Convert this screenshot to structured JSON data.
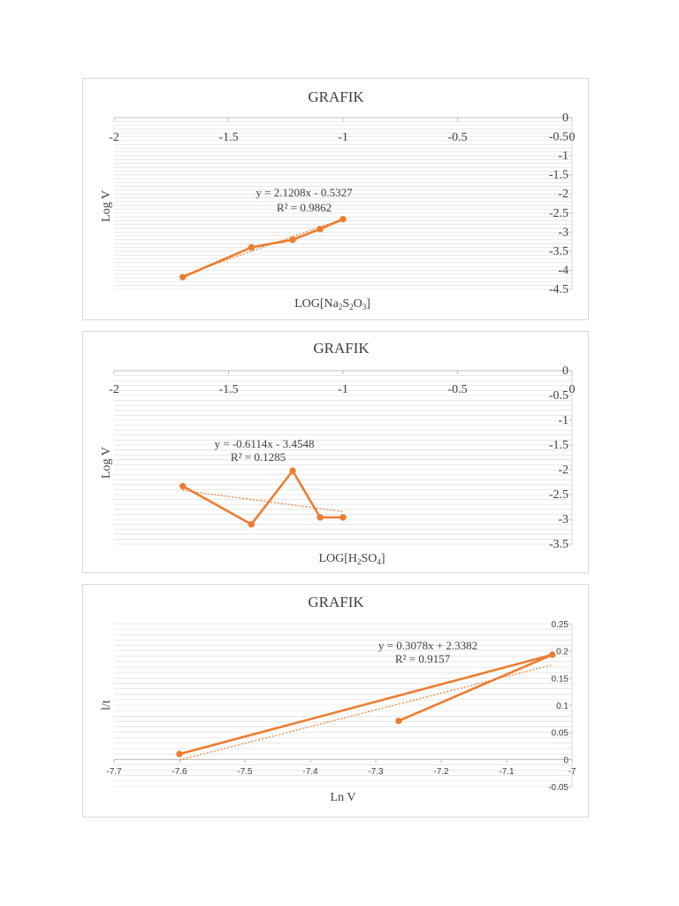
{
  "chart_data": [
    {
      "type": "line",
      "title": "GRAFIK",
      "xlabel": "LOG[Na2S2O3]",
      "xlabel_main": "LOG[Na",
      "xlabel_sub1": "2",
      "xlabel_mid1": "S",
      "xlabel_sub2": "2",
      "xlabel_mid2": "O",
      "xlabel_sub3": "3",
      "xlabel_end": "]",
      "ylabel": "Log V",
      "xlim": [
        -2,
        0
      ],
      "ylim": [
        -4.5,
        0
      ],
      "x_ticks": [
        "-2",
        "-1.5",
        "-1",
        "-0.5",
        "0"
      ],
      "y_ticks": [
        "0",
        "-0.5",
        "-1",
        "-1.5",
        "-2",
        "-2.5",
        "-3",
        "-3.5",
        "-4",
        "-4.5"
      ],
      "series": [
        {
          "x": [
            -1.7,
            -1.4,
            -1.22,
            -1.1,
            -1.0
          ],
          "y": [
            -4.18,
            -3.4,
            -3.2,
            -2.92,
            -2.66
          ]
        }
      ],
      "trendline": {
        "slope": 2.1208,
        "intercept": -0.5327
      },
      "equation": "y = 2.1208x - 0.5327",
      "r2": "R² = 0.9862"
    },
    {
      "type": "line",
      "title": "GRAFIK",
      "xlabel": "LOG[H2SO4]",
      "xlabel_main": "LOG[H",
      "xlabel_sub1": "2",
      "xlabel_mid1": "SO",
      "xlabel_sub2": "4",
      "xlabel_end": "]",
      "ylabel": "Log V",
      "xlim": [
        -2,
        0
      ],
      "ylim": [
        -3.5,
        0
      ],
      "x_ticks": [
        "-2",
        "-1.5",
        "-1",
        "-0.5",
        "0"
      ],
      "y_ticks": [
        "0",
        "-0.5",
        "-1",
        "-1.5",
        "-2",
        "-2.5",
        "-3",
        "-3.5"
      ],
      "series": [
        {
          "x": [
            -1.7,
            -1.4,
            -1.22,
            -1.1,
            -1.0
          ],
          "y": [
            -2.33,
            -3.1,
            -2.02,
            -2.96,
            -2.96
          ]
        }
      ],
      "trendline": {
        "slope": -0.6114,
        "intercept": -3.4548
      },
      "equation": "y = -0.6114x - 3.4548",
      "r2": "R² = 0.1285"
    },
    {
      "type": "line",
      "title": "GRAFIK",
      "xlabel": "Ln V",
      "ylabel": "l/t",
      "xlim": [
        -7.7,
        -7.0
      ],
      "ylim": [
        -0.05,
        0.25
      ],
      "x_ticks": [
        "-7.7",
        "-7.6",
        "-7.5",
        "-7.4",
        "-7.3",
        "-7.2",
        "-7.1",
        "-7"
      ],
      "y_ticks": [
        "0.25",
        "0.2",
        "0.15",
        "0.1",
        "0.05",
        "0",
        "-0.05"
      ],
      "series": [
        {
          "x": [
            -7.6,
            -7.03,
            -7.265
          ],
          "y": [
            0.01,
            0.193,
            0.071
          ]
        }
      ],
      "trendline": {
        "slope": 0.3078,
        "intercept": 2.3382
      },
      "equation": "y = 0.3078x + 2.3382",
      "r2": "R² = 0.9157"
    }
  ],
  "colors": {
    "series": "#ed7d31",
    "grid": "#d9d9d9",
    "text": "#404040",
    "border": "#d9d9d9"
  }
}
